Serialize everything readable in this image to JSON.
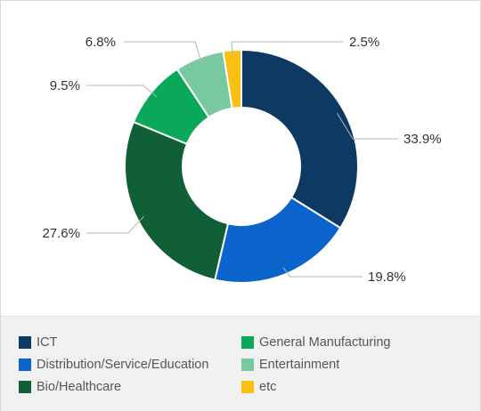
{
  "colors": {
    "ICT": "#0d3963",
    "Distribution/Service/Education": "#0b63cc",
    "Bio/Healthcare": "#115f37",
    "General Manufacturing": "#0aa858",
    "Entertainment": "#78c9a0",
    "etc": "#fbbf10"
  },
  "chart_data": {
    "type": "pie",
    "donut": true,
    "categories": [
      "ICT",
      "Distribution/Service/Education",
      "Bio/Healthcare",
      "General Manufacturing",
      "Entertainment",
      "etc"
    ],
    "values": [
      33.9,
      19.8,
      27.6,
      9.5,
      6.8,
      2.5
    ],
    "value_labels": [
      "33.9%",
      "19.8%",
      "27.6%",
      "9.5%",
      "6.8%",
      "2.5%"
    ],
    "start": "12 o'clock",
    "direction": "clockwise",
    "legend_position": "bottom"
  },
  "legend": {
    "items": [
      {
        "label": "ICT",
        "color": "#0d3963"
      },
      {
        "label": "Distribution/Service/Education",
        "color": "#0b63cc"
      },
      {
        "label": "Bio/Healthcare",
        "color": "#115f37"
      },
      {
        "label": "General Manufacturing",
        "color": "#0aa858"
      },
      {
        "label": "Entertainment",
        "color": "#78c9a0"
      },
      {
        "label": "etc",
        "color": "#fbbf10"
      }
    ]
  }
}
